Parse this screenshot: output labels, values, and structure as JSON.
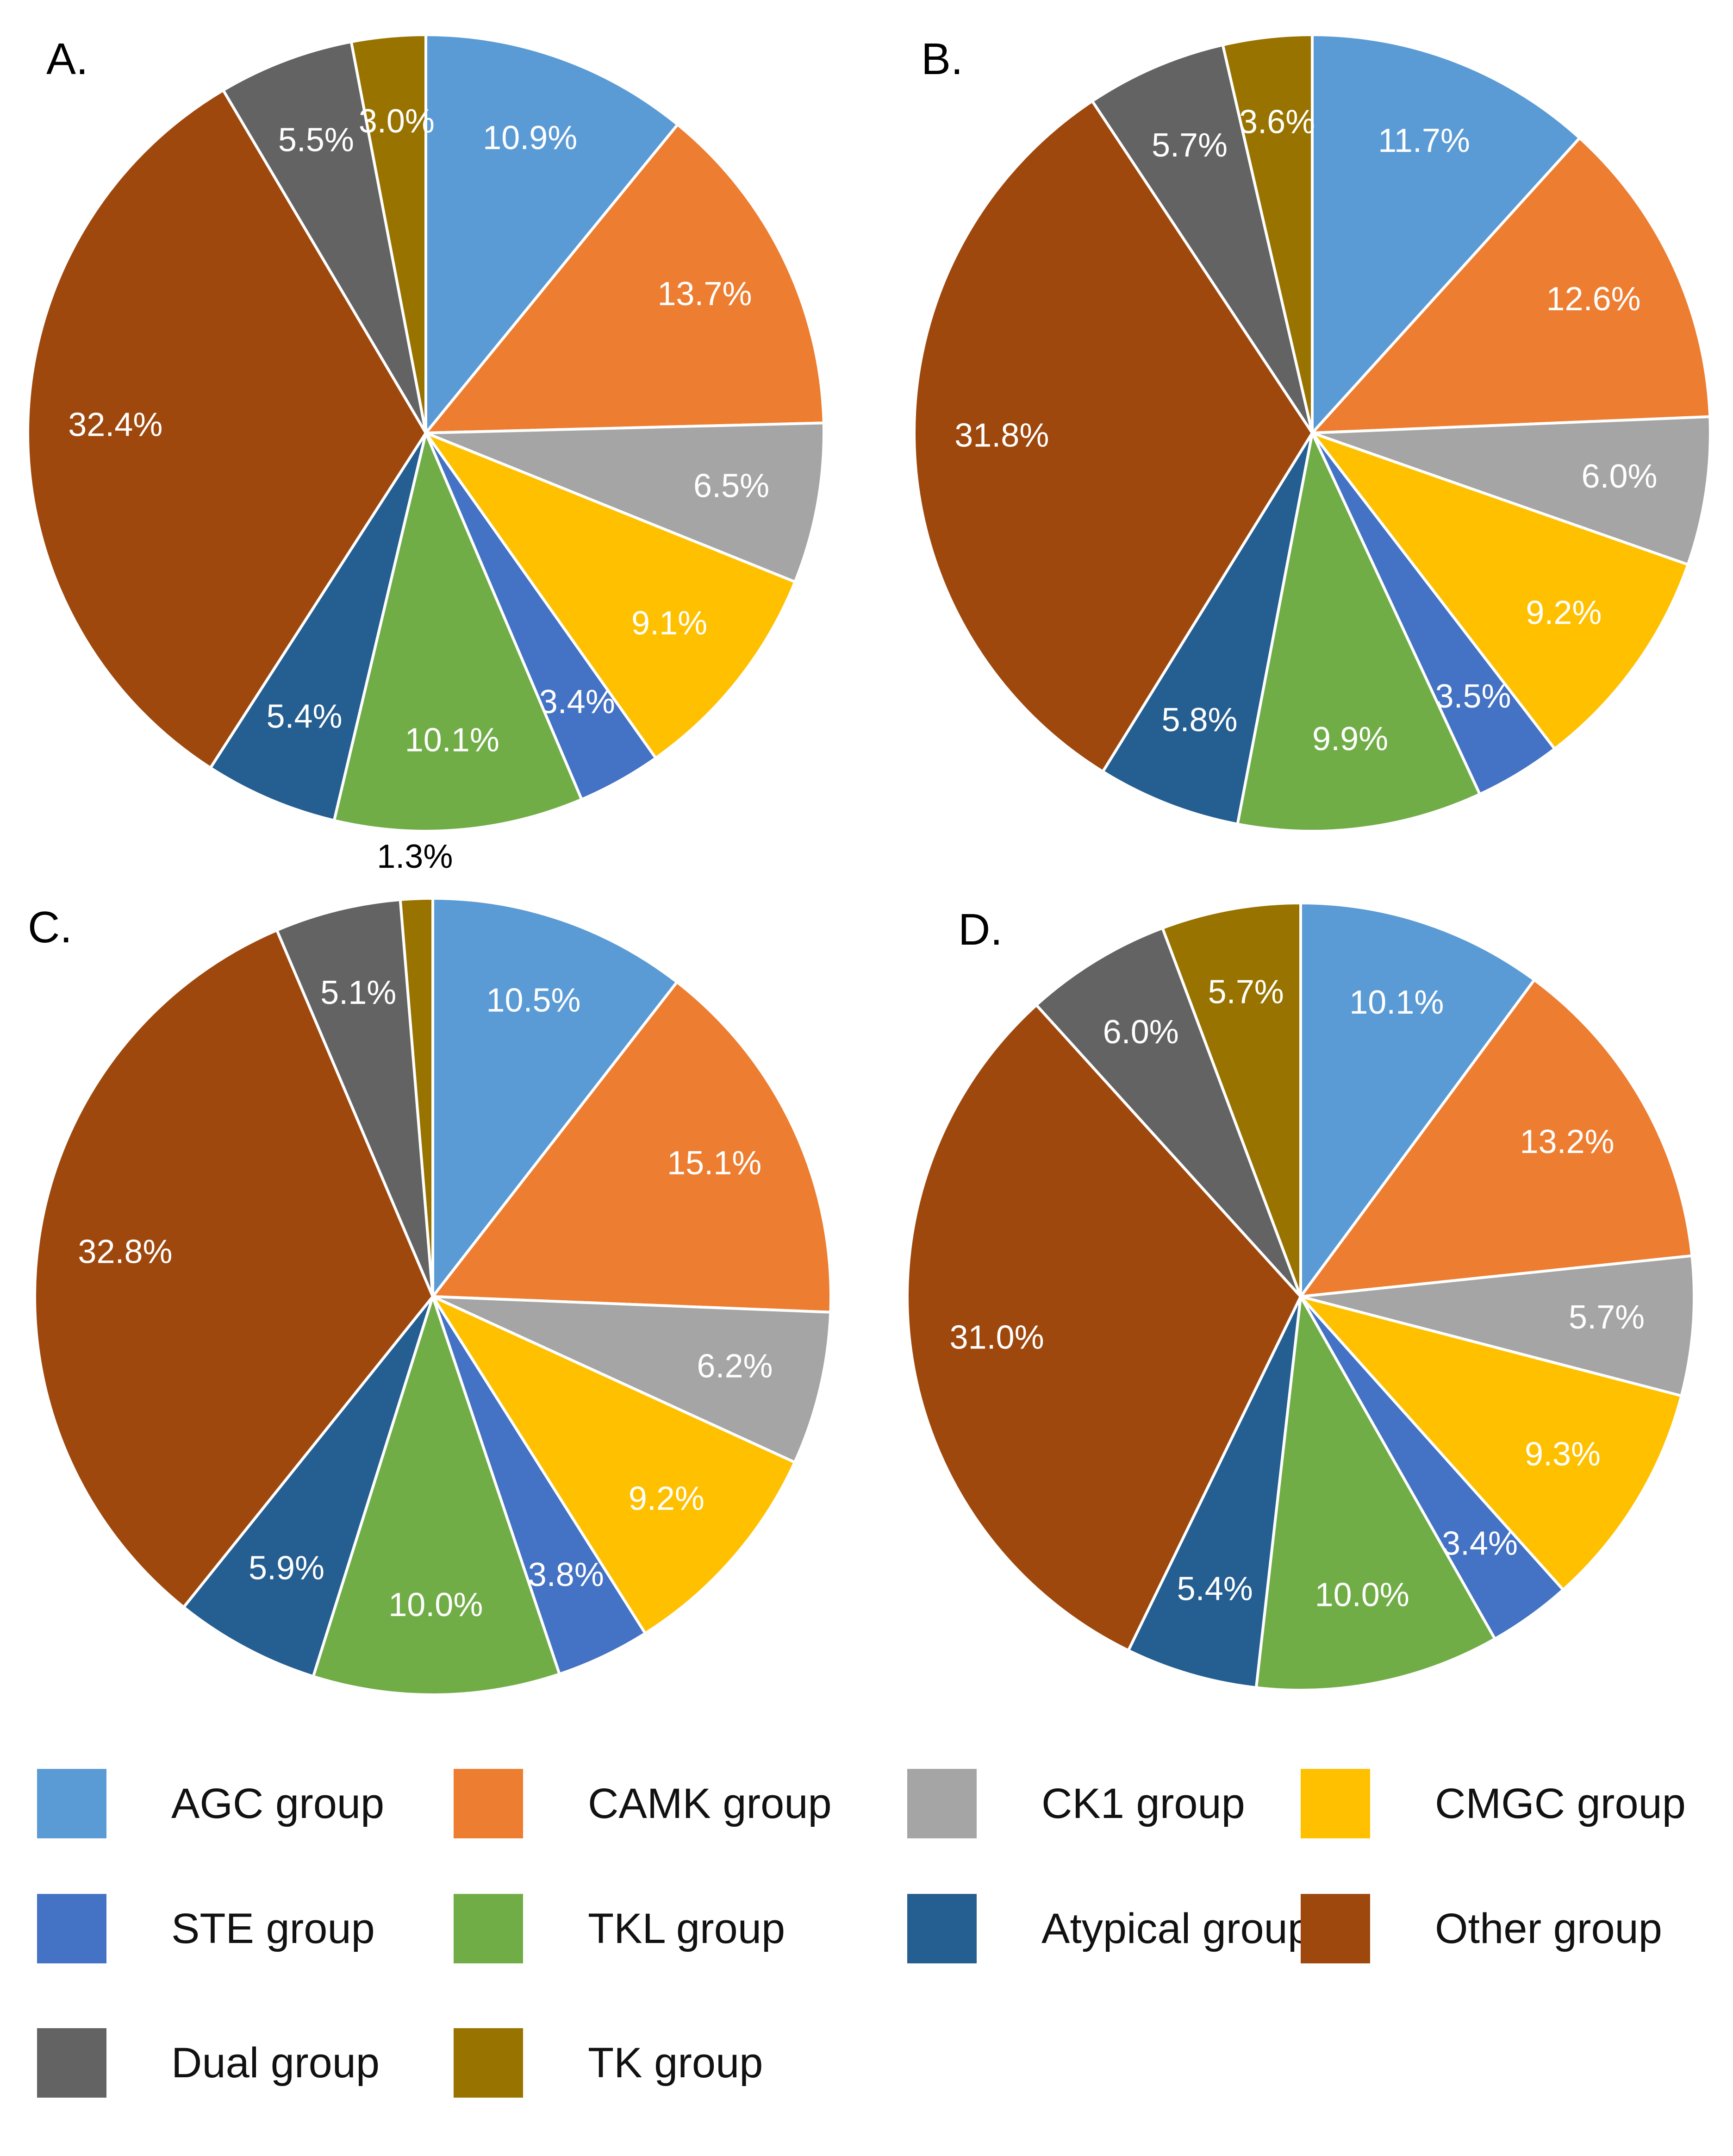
{
  "chart_data": [
    {
      "type": "pie",
      "title": "A.",
      "slices": [
        {
          "group": "AGC group",
          "value": 10.9,
          "label": "10.9%"
        },
        {
          "group": "CAMK group",
          "value": 13.7,
          "label": "13.7%"
        },
        {
          "group": "CK1 group",
          "value": 6.5,
          "label": "6.5%"
        },
        {
          "group": "CMGC group",
          "value": 9.1,
          "label": "9.1%"
        },
        {
          "group": "STE group",
          "value": 3.4,
          "label": "3.4%"
        },
        {
          "group": "TKL group",
          "value": 10.1,
          "label": "10.1%"
        },
        {
          "group": "Atypical group",
          "value": 5.4,
          "label": "5.4%"
        },
        {
          "group": "Other group",
          "value": 32.4,
          "label": "32.4%"
        },
        {
          "group": "Dual group",
          "value": 5.5,
          "label": "5.5%"
        },
        {
          "group": "TK group",
          "value": 3.0,
          "label": "3.0%"
        }
      ]
    },
    {
      "type": "pie",
      "title": "B.",
      "slices": [
        {
          "group": "AGC group",
          "value": 11.7,
          "label": "11.7%"
        },
        {
          "group": "CAMK group",
          "value": 12.6,
          "label": "12.6%"
        },
        {
          "group": "CK1 group",
          "value": 6.0,
          "label": "6.0%"
        },
        {
          "group": "CMGC group",
          "value": 9.2,
          "label": "9.2%"
        },
        {
          "group": "STE group",
          "value": 3.5,
          "label": "3.5%"
        },
        {
          "group": "TKL group",
          "value": 9.9,
          "label": "9.9%"
        },
        {
          "group": "Atypical group",
          "value": 5.8,
          "label": "5.8%"
        },
        {
          "group": "Other group",
          "value": 31.8,
          "label": "31.8%"
        },
        {
          "group": "Dual group",
          "value": 5.7,
          "label": "5.7%"
        },
        {
          "group": "TK group",
          "value": 3.6,
          "label": "3.6%"
        }
      ]
    },
    {
      "type": "pie",
      "title": "C.",
      "slices": [
        {
          "group": "AGC group",
          "value": 10.5,
          "label": "10.5%"
        },
        {
          "group": "CAMK group",
          "value": 15.1,
          "label": "15.1%"
        },
        {
          "group": "CK1 group",
          "value": 6.2,
          "label": "6.2%"
        },
        {
          "group": "CMGC group",
          "value": 9.2,
          "label": "9.2%"
        },
        {
          "group": "STE group",
          "value": 3.8,
          "label": "3.8%"
        },
        {
          "group": "TKL group",
          "value": 10.0,
          "label": "10.0%"
        },
        {
          "group": "Atypical group",
          "value": 5.9,
          "label": "5.9%"
        },
        {
          "group": "Other group",
          "value": 32.8,
          "label": "32.8%"
        },
        {
          "group": "Dual group",
          "value": 5.1,
          "label": "5.1%"
        },
        {
          "group": "TK group",
          "value": 1.3,
          "label": "1.3%",
          "outside": true
        }
      ]
    },
    {
      "type": "pie",
      "title": "D.",
      "slices": [
        {
          "group": "AGC group",
          "value": 10.1,
          "label": "10.1%"
        },
        {
          "group": "CAMK group",
          "value": 13.2,
          "label": "13.2%"
        },
        {
          "group": "CK1 group",
          "value": 5.7,
          "label": "5.7%"
        },
        {
          "group": "CMGC group",
          "value": 9.3,
          "label": "9.3%"
        },
        {
          "group": "STE group",
          "value": 3.4,
          "label": "3.4%"
        },
        {
          "group": "TKL group",
          "value": 10.0,
          "label": "10.0%"
        },
        {
          "group": "Atypical group",
          "value": 5.4,
          "label": "5.4%"
        },
        {
          "group": "Other group",
          "value": 31.0,
          "label": "31.0%"
        },
        {
          "group": "Dual group",
          "value": 6.0,
          "label": "6.0%"
        },
        {
          "group": "TK group",
          "value": 5.7,
          "label": "5.7%"
        }
      ]
    }
  ],
  "legend": [
    {
      "label": "AGC group",
      "color": "#5B9BD5"
    },
    {
      "label": "CAMK group",
      "color": "#ED7D31"
    },
    {
      "label": "CK1 group",
      "color": "#A5A5A5"
    },
    {
      "label": "CMGC group",
      "color": "#FFC000"
    },
    {
      "label": "STE group",
      "color": "#4472C4"
    },
    {
      "label": "TKL group",
      "color": "#70AD47"
    },
    {
      "label": "Atypical group",
      "color": "#255E91"
    },
    {
      "label": "Other group",
      "color": "#9E480E"
    },
    {
      "label": "Dual group",
      "color": "#636363"
    },
    {
      "label": "TK group",
      "color": "#997300"
    }
  ]
}
